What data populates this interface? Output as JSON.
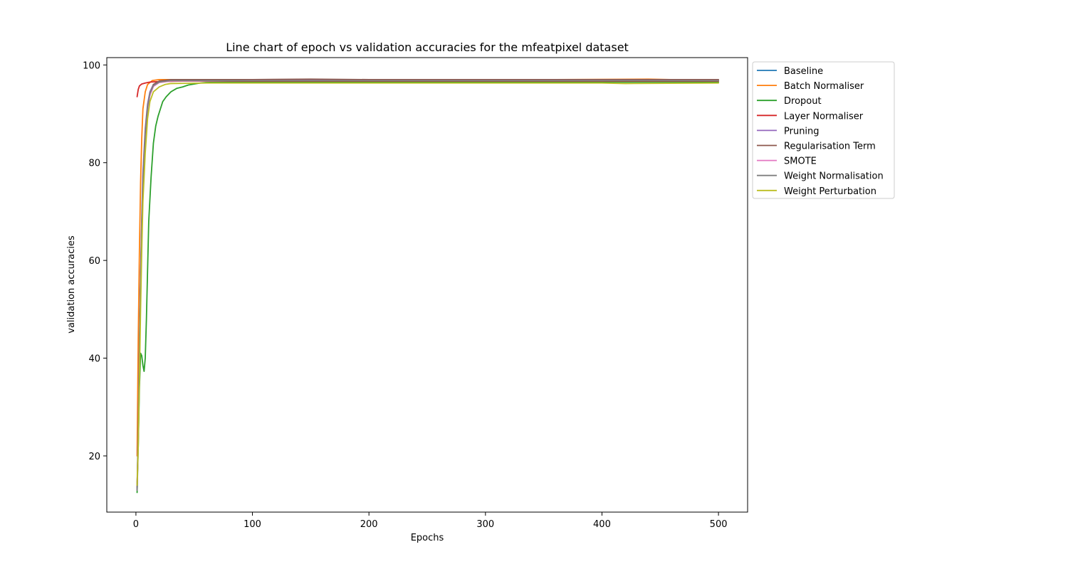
{
  "chart_data": {
    "type": "line",
    "title": "Line chart of epoch vs validation accuracies for the mfeatpixel dataset",
    "xlabel": "Epochs",
    "ylabel": "validation accuracies",
    "xlim": [
      -25,
      525
    ],
    "ylim": [
      8.5,
      101.5
    ],
    "xticks": [
      0,
      100,
      200,
      300,
      400,
      500
    ],
    "yticks": [
      20,
      40,
      60,
      80,
      100
    ],
    "grid": false,
    "legend_position": "outside-top-right",
    "series": [
      {
        "name": "Baseline",
        "color": "#1f77b4",
        "points": [
          [
            1,
            13
          ],
          [
            2,
            25
          ],
          [
            3,
            42
          ],
          [
            4,
            56
          ],
          [
            5,
            68
          ],
          [
            6,
            77
          ],
          [
            8,
            86
          ],
          [
            10,
            91
          ],
          [
            12,
            94
          ],
          [
            15,
            95.8
          ],
          [
            20,
            96.5
          ],
          [
            30,
            96.8
          ],
          [
            60,
            96.9
          ],
          [
            100,
            96.9
          ],
          [
            200,
            96.9
          ],
          [
            300,
            96.9
          ],
          [
            400,
            96.9
          ],
          [
            500,
            96.9
          ]
        ]
      },
      {
        "name": "Batch Normaliser",
        "color": "#ff7f0e",
        "points": [
          [
            1,
            20
          ],
          [
            2,
            44
          ],
          [
            3,
            62
          ],
          [
            4,
            76
          ],
          [
            5,
            85
          ],
          [
            6,
            91
          ],
          [
            8,
            94.5
          ],
          [
            10,
            96
          ],
          [
            14,
            96.8
          ],
          [
            20,
            97
          ],
          [
            40,
            97
          ],
          [
            100,
            97
          ],
          [
            200,
            97
          ],
          [
            300,
            96.9
          ],
          [
            360,
            97
          ],
          [
            440,
            97.1
          ],
          [
            500,
            96.8
          ]
        ]
      },
      {
        "name": "Dropout",
        "color": "#2ca02c",
        "points": [
          [
            1,
            12.5
          ],
          [
            2,
            22
          ],
          [
            3,
            34
          ],
          [
            4,
            41
          ],
          [
            5,
            40.5
          ],
          [
            6,
            38.5
          ],
          [
            7,
            37.3
          ],
          [
            8,
            40
          ],
          [
            9,
            48
          ],
          [
            10,
            58
          ],
          [
            11,
            68
          ],
          [
            13,
            77
          ],
          [
            15,
            84
          ],
          [
            17,
            87.5
          ],
          [
            19,
            89.5
          ],
          [
            21,
            91
          ],
          [
            23,
            92.5
          ],
          [
            26,
            93.5
          ],
          [
            30,
            94.5
          ],
          [
            35,
            95.2
          ],
          [
            40,
            95.5
          ],
          [
            45,
            95.9
          ],
          [
            50,
            96.1
          ],
          [
            55,
            96.3
          ],
          [
            60,
            96.4
          ],
          [
            80,
            96.5
          ],
          [
            100,
            96.5
          ],
          [
            200,
            96.5
          ],
          [
            300,
            96.5
          ],
          [
            400,
            96.5
          ],
          [
            500,
            96.5
          ]
        ]
      },
      {
        "name": "Layer Normaliser",
        "color": "#d62728",
        "points": [
          [
            1,
            93.5
          ],
          [
            2,
            95
          ],
          [
            3,
            95.7
          ],
          [
            5,
            96.1
          ],
          [
            8,
            96.3
          ],
          [
            12,
            96.5
          ],
          [
            20,
            96.6
          ],
          [
            40,
            96.7
          ],
          [
            100,
            96.7
          ],
          [
            200,
            96.7
          ],
          [
            300,
            96.7
          ],
          [
            400,
            96.7
          ],
          [
            500,
            96.7
          ]
        ]
      },
      {
        "name": "Pruning",
        "color": "#9467bd",
        "points": [
          [
            1,
            14
          ],
          [
            2,
            26
          ],
          [
            3,
            43
          ],
          [
            4,
            57
          ],
          [
            5,
            69
          ],
          [
            6,
            78
          ],
          [
            8,
            87
          ],
          [
            10,
            92
          ],
          [
            12,
            94.5
          ],
          [
            15,
            96
          ],
          [
            20,
            96.7
          ],
          [
            30,
            96.9
          ],
          [
            100,
            96.9
          ],
          [
            200,
            96.9
          ],
          [
            300,
            96.9
          ],
          [
            400,
            96.9
          ],
          [
            500,
            96.9
          ]
        ]
      },
      {
        "name": "Regularisation Term",
        "color": "#8c564b",
        "points": [
          [
            1,
            13.5
          ],
          [
            2,
            24
          ],
          [
            3,
            41
          ],
          [
            4,
            55
          ],
          [
            5,
            67
          ],
          [
            6,
            76
          ],
          [
            8,
            86
          ],
          [
            10,
            91.5
          ],
          [
            12,
            94
          ],
          [
            15,
            96
          ],
          [
            20,
            96.7
          ],
          [
            30,
            97
          ],
          [
            100,
            97
          ],
          [
            150,
            97.1
          ],
          [
            200,
            97
          ],
          [
            300,
            97
          ],
          [
            400,
            97
          ],
          [
            500,
            97
          ]
        ]
      },
      {
        "name": "SMOTE",
        "color": "#e377c2",
        "points": [
          [
            1,
            13
          ],
          [
            2,
            23
          ],
          [
            3,
            40
          ],
          [
            4,
            54
          ],
          [
            5,
            66
          ],
          [
            6,
            75
          ],
          [
            8,
            85
          ],
          [
            10,
            91
          ],
          [
            12,
            93.8
          ],
          [
            15,
            95.6
          ],
          [
            20,
            96.4
          ],
          [
            30,
            96.7
          ],
          [
            100,
            96.8
          ],
          [
            200,
            96.8
          ],
          [
            300,
            96.8
          ],
          [
            400,
            96.8
          ],
          [
            500,
            96.8
          ]
        ]
      },
      {
        "name": "Weight Normalisation",
        "color": "#7f7f7f",
        "points": [
          [
            1,
            13
          ],
          [
            2,
            24
          ],
          [
            3,
            41
          ],
          [
            4,
            55
          ],
          [
            5,
            67
          ],
          [
            6,
            76
          ],
          [
            8,
            86
          ],
          [
            10,
            91.5
          ],
          [
            12,
            94.2
          ],
          [
            15,
            95.8
          ],
          [
            20,
            96.5
          ],
          [
            30,
            96.8
          ],
          [
            100,
            96.8
          ],
          [
            200,
            96.8
          ],
          [
            300,
            96.8
          ],
          [
            400,
            96.8
          ],
          [
            500,
            96.8
          ]
        ]
      },
      {
        "name": "Weight Perturbation",
        "color": "#bcbd22",
        "points": [
          [
            1,
            14
          ],
          [
            2,
            22
          ],
          [
            3,
            36
          ],
          [
            4,
            50
          ],
          [
            5,
            62
          ],
          [
            6,
            72
          ],
          [
            8,
            82
          ],
          [
            10,
            89
          ],
          [
            12,
            92.5
          ],
          [
            15,
            94.5
          ],
          [
            20,
            95.5
          ],
          [
            25,
            96
          ],
          [
            30,
            96.2
          ],
          [
            60,
            96.3
          ],
          [
            100,
            96.3
          ],
          [
            200,
            96.3
          ],
          [
            300,
            96.3
          ],
          [
            400,
            96.3
          ],
          [
            420,
            96.2
          ],
          [
            500,
            96.3
          ]
        ]
      }
    ]
  }
}
